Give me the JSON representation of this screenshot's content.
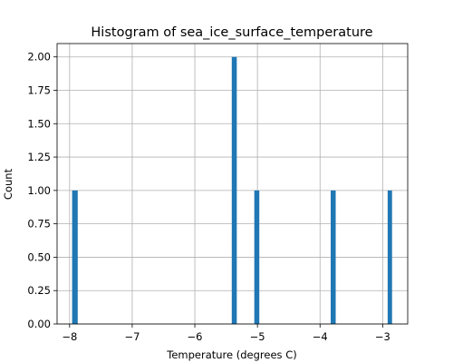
{
  "chart_data": {
    "type": "bar",
    "title": "Histogram of sea_ice_surface_temperature",
    "xlabel": "Temperature (degrees C)",
    "ylabel": "Count",
    "xlim": [
      -8.2,
      -2.6
    ],
    "ylim": [
      0,
      2.1
    ],
    "grid": true,
    "bar_color": "#1f77b4",
    "x_ticks": [
      -8,
      -7,
      -6,
      -5,
      -4,
      -3
    ],
    "x_tick_labels": [
      "−8",
      "−7",
      "−6",
      "−5",
      "−4",
      "−3"
    ],
    "y_ticks": [
      0,
      0.25,
      0.5,
      0.75,
      1.0,
      1.25,
      1.5,
      1.75,
      2.0
    ],
    "y_tick_labels": [
      "0.00",
      "0.25",
      "0.50",
      "0.75",
      "1.00",
      "1.25",
      "1.50",
      "1.75",
      "2.00"
    ],
    "bins": [
      {
        "x0": -7.96,
        "x1": -7.87,
        "count": 1
      },
      {
        "x0": -5.41,
        "x1": -5.33,
        "count": 2
      },
      {
        "x0": -5.05,
        "x1": -4.97,
        "count": 1
      },
      {
        "x0": -3.83,
        "x1": -3.75,
        "count": 1
      },
      {
        "x0": -2.92,
        "x1": -2.85,
        "count": 1
      }
    ]
  }
}
